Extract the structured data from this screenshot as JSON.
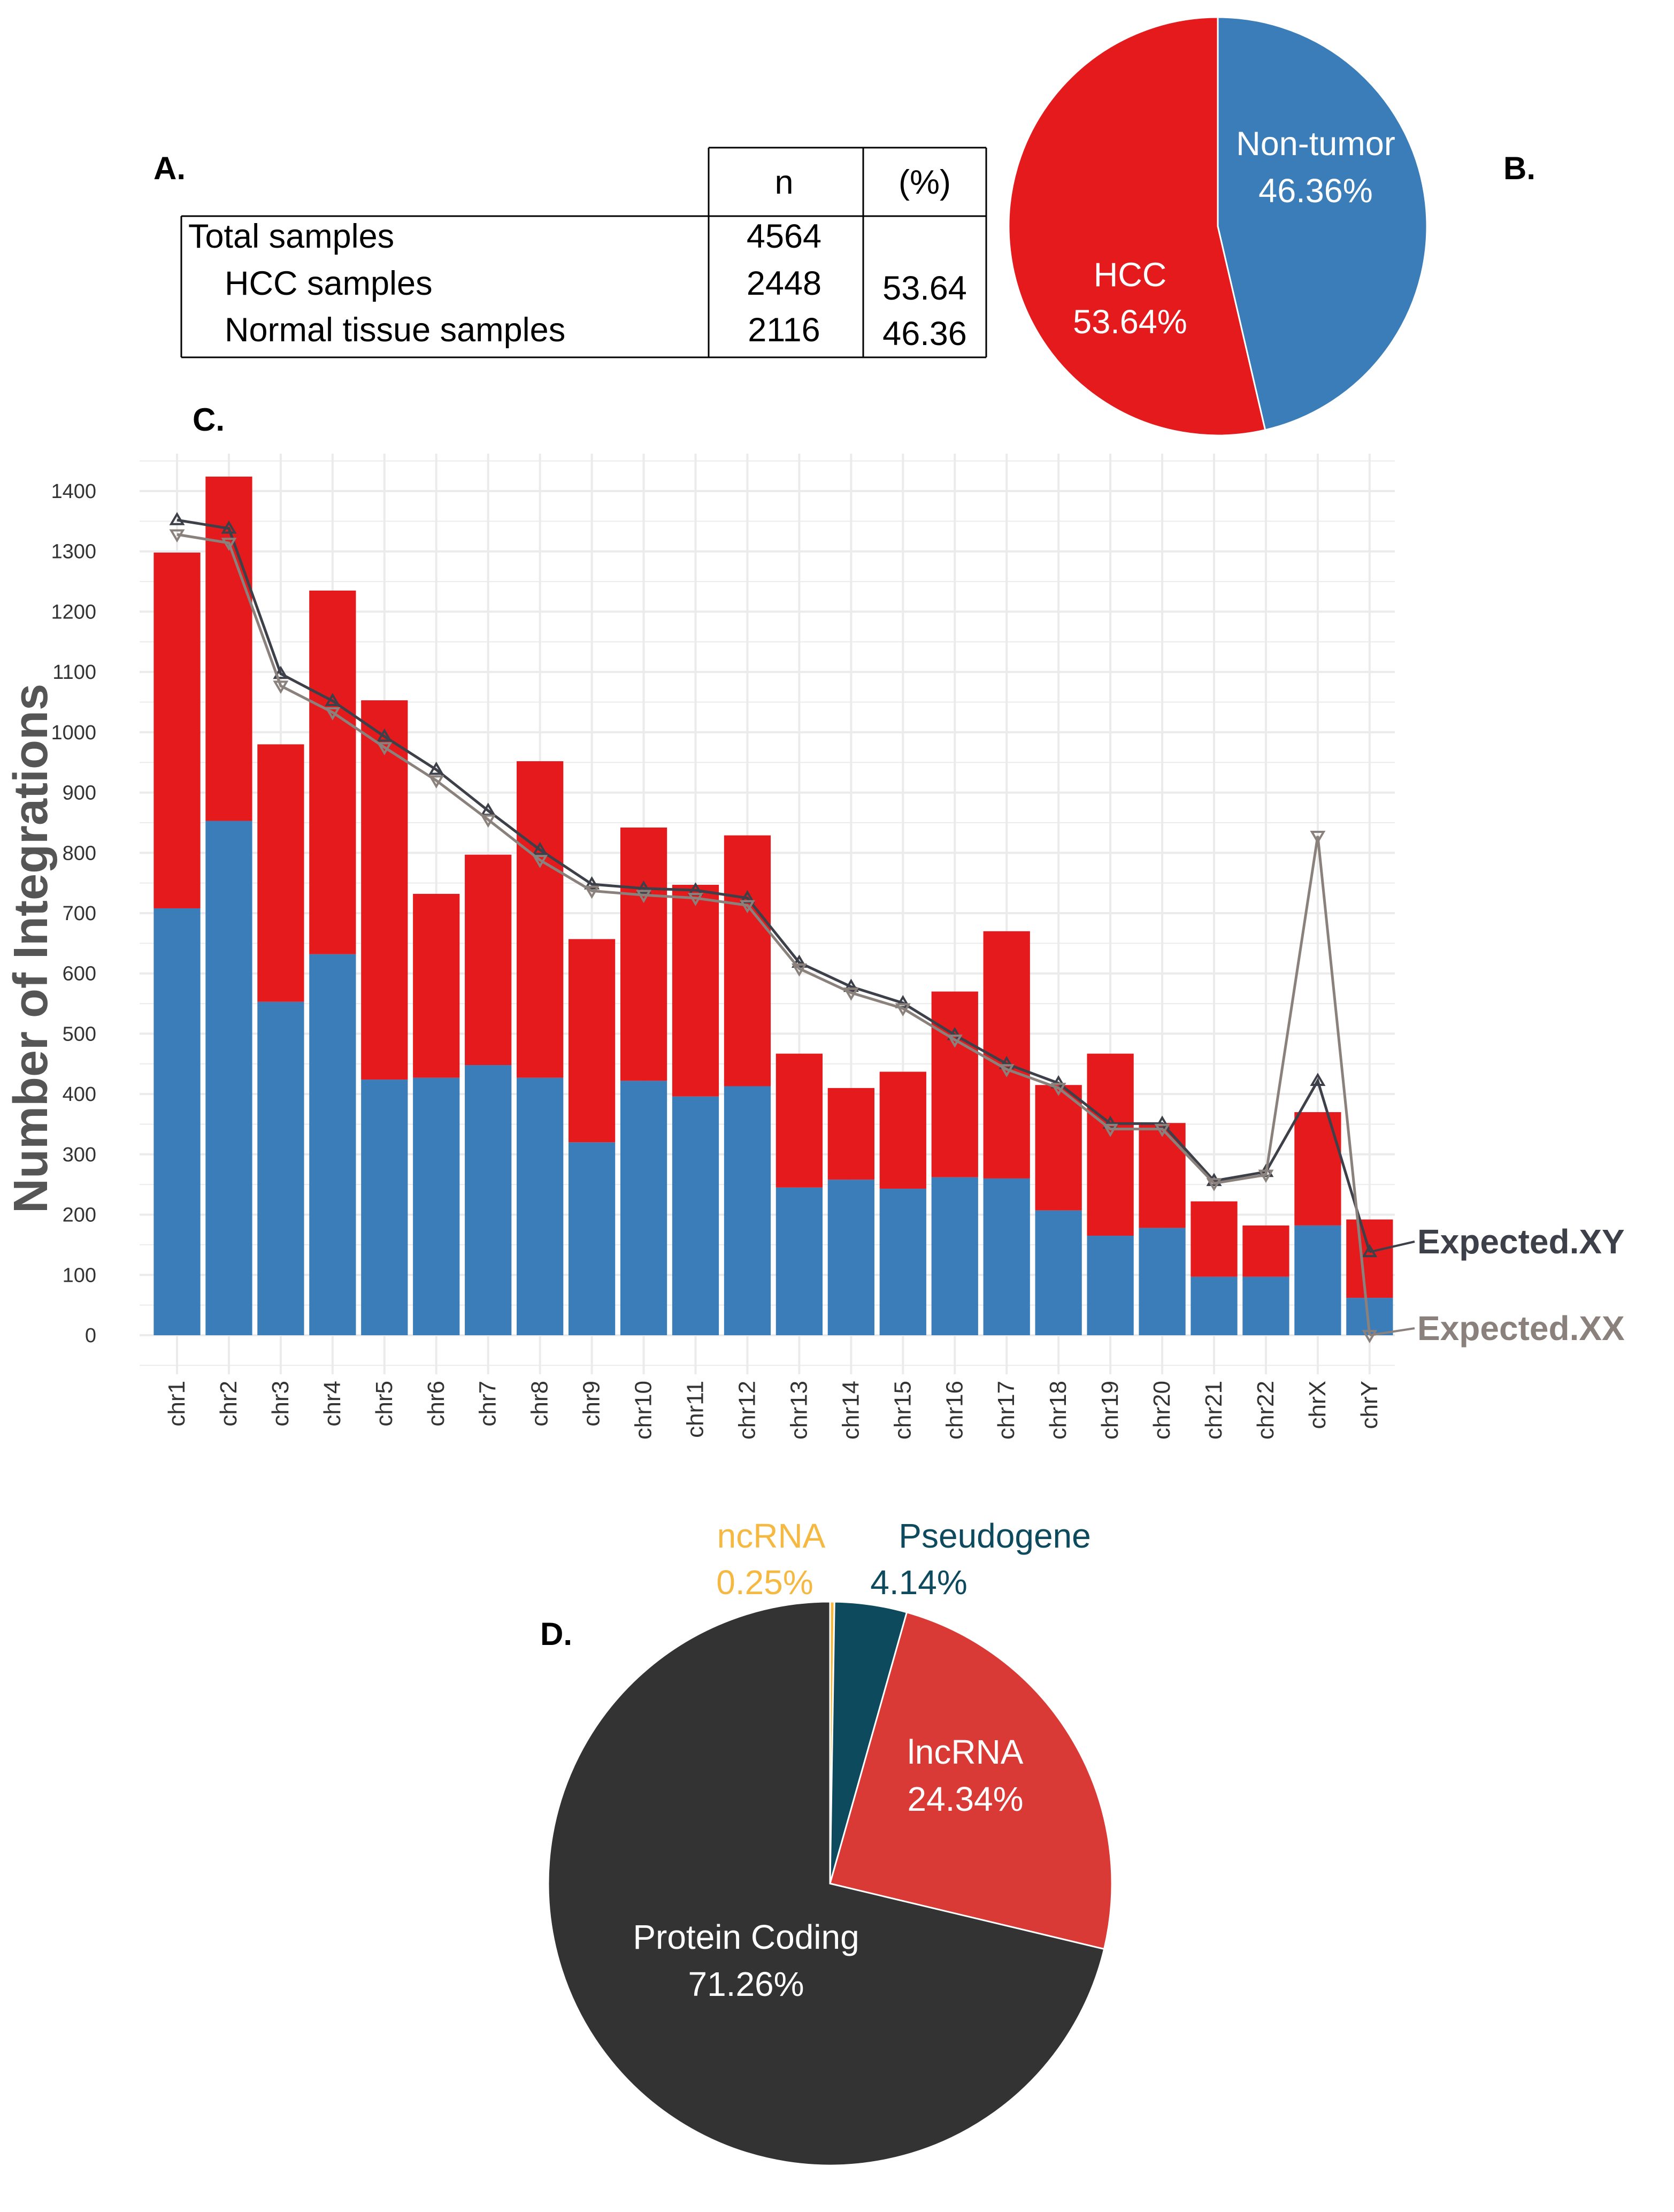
{
  "panel_labels": {
    "a": "A.",
    "b": "B.",
    "c": "C.",
    "d": "D."
  },
  "table": {
    "headers": [
      "",
      "n",
      "(%)"
    ],
    "rows": [
      {
        "label": "Total samples",
        "n": "4564",
        "pct": ""
      },
      {
        "label": "HCC samples",
        "n": "2448",
        "pct": "53.64"
      },
      {
        "label": "Normal tissue samples",
        "n": "2116",
        "pct": "46.36"
      }
    ]
  },
  "chart_data": [
    {
      "type": "pie",
      "id": "B",
      "slices": [
        {
          "name": "Non-tumor",
          "label": "46.36%",
          "value": 46.36,
          "color": "#3a7db8"
        },
        {
          "name": "HCC",
          "label": "53.64%",
          "value": 53.64,
          "color": "#e41a1c"
        }
      ]
    },
    {
      "type": "bar",
      "id": "C",
      "stacked": true,
      "ylabel": "Number of Integrations",
      "xlabel": "",
      "ylim": [
        -50,
        1450
      ],
      "yticks": [
        0,
        100,
        200,
        300,
        400,
        500,
        600,
        700,
        800,
        900,
        1000,
        1100,
        1200,
        1300,
        1400
      ],
      "grid": true,
      "categories": [
        "chr1",
        "chr2",
        "chr3",
        "chr4",
        "chr5",
        "chr6",
        "chr7",
        "chr8",
        "chr9",
        "chr10",
        "chr11",
        "chr12",
        "chr13",
        "chr14",
        "chr15",
        "chr16",
        "chr17",
        "chr18",
        "chr19",
        "chr20",
        "chr21",
        "chr22",
        "chrX",
        "chrY"
      ],
      "series": [
        {
          "name": "Non-tumor",
          "color": "#3a7db8",
          "values": [
            708,
            853,
            553,
            632,
            424,
            427,
            448,
            427,
            320,
            422,
            396,
            413,
            245,
            258,
            243,
            262,
            260,
            207,
            165,
            178,
            97,
            97,
            182,
            62
          ]
        },
        {
          "name": "HCC",
          "color": "#e41a1c",
          "values": [
            590,
            571,
            427,
            603,
            629,
            305,
            349,
            525,
            337,
            420,
            351,
            416,
            222,
            152,
            194,
            308,
            410,
            208,
            302,
            174,
            125,
            85,
            188,
            130
          ]
        }
      ],
      "lines": [
        {
          "name": "Expected.XY",
          "color": "#3d4049",
          "marker": "triangle-up",
          "values": [
            1352,
            1338,
            1097,
            1052,
            993,
            938,
            870,
            805,
            748,
            741,
            738,
            725,
            618,
            578,
            551,
            498,
            450,
            418,
            351,
            351,
            256,
            271,
            422,
            138
          ]
        },
        {
          "name": "Expected.XX",
          "color": "#8a817c",
          "marker": "triangle-down",
          "values": [
            1328,
            1314,
            1077,
            1033,
            975,
            920,
            855,
            788,
            737,
            730,
            725,
            713,
            608,
            568,
            542,
            490,
            441,
            410,
            342,
            342,
            252,
            266,
            828,
            0
          ]
        }
      ]
    },
    {
      "type": "pie",
      "id": "D",
      "slices": [
        {
          "name": "ncRNA",
          "label": "0.25%",
          "value": 0.25,
          "color": "#f5b942"
        },
        {
          "name": "Pseudogene",
          "label": "4.14%",
          "value": 4.14,
          "color": "#0d4a5e"
        },
        {
          "name": "lncRNA",
          "label": "24.34%",
          "value": 24.34,
          "color": "#d93a35"
        },
        {
          "name": "Protein Coding",
          "label": "71.26%",
          "value": 71.26,
          "color": "#333333"
        }
      ]
    }
  ]
}
